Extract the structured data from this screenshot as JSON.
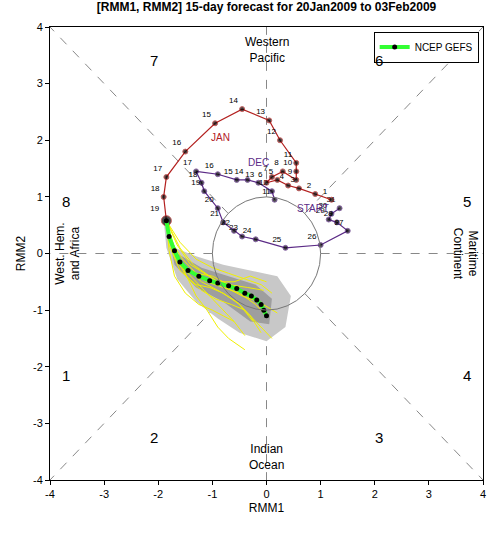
{
  "chart_data": {
    "type": "phase_diagram",
    "title": "[RMM1, RMM2] 15-day forecast for 20Jan2009 to 03Feb2009",
    "x_label": "RMM1",
    "y_label": "RMM2",
    "xlim": [
      -4,
      4
    ],
    "ylim": [
      -4,
      4
    ],
    "xticks": [
      -4,
      -3,
      -2,
      -1,
      0,
      1,
      2,
      3,
      4
    ],
    "yticks": [
      -4,
      -3,
      -2,
      -1,
      0,
      1,
      2,
      3,
      4
    ],
    "circle_radius": 1,
    "legend": "top right",
    "spread": [
      {
        "color": "#c8c8c8",
        "x": [
          -1.9,
          -1.7,
          -1.3,
          -0.8,
          -0.3,
          0.2,
          0.45,
          0.35,
          0.0,
          -0.5,
          -0.9,
          -1.3,
          -1.65,
          -1.85
        ],
        "y": [
          0.6,
          0.1,
          -0.05,
          -0.2,
          -0.3,
          -0.4,
          -0.75,
          -1.3,
          -1.55,
          -1.4,
          -1.15,
          -0.85,
          -0.45,
          0.1
        ]
      },
      {
        "color": "#9e9e9e",
        "x": [
          -1.85,
          -1.65,
          -1.2,
          -0.7,
          -0.2,
          0.1,
          0.05,
          -0.3,
          -0.8,
          -1.3,
          -1.7
        ],
        "y": [
          0.5,
          0.0,
          -0.25,
          -0.4,
          -0.55,
          -0.8,
          -1.25,
          -1.2,
          -0.85,
          -0.6,
          -0.2
        ]
      }
    ],
    "ensemble": {
      "color": "#f0f000",
      "members": [
        {
          "x": [
            -1.85,
            -1.7,
            -1.45,
            -1.1,
            -0.8,
            -0.5,
            -0.2,
            0.0
          ],
          "y": [
            0.58,
            0.0,
            -0.3,
            -0.5,
            -0.6,
            -0.7,
            -0.9,
            -1.1
          ]
        },
        {
          "x": [
            -1.85,
            -1.75,
            -1.6,
            -1.35,
            -1.1,
            -0.85,
            -0.6,
            -0.4
          ],
          "y": [
            0.58,
            0.1,
            -0.2,
            -0.45,
            -0.7,
            -0.95,
            -1.2,
            -1.45
          ]
        },
        {
          "x": [
            -1.85,
            -1.6,
            -1.3,
            -1.0,
            -0.7,
            -0.4,
            -0.1,
            0.1
          ],
          "y": [
            0.58,
            0.2,
            -0.1,
            -0.25,
            -0.35,
            -0.45,
            -0.55,
            -0.7
          ]
        },
        {
          "x": [
            -1.85,
            -1.8,
            -1.7,
            -1.5,
            -1.25,
            -1.0,
            -0.8,
            -0.6
          ],
          "y": [
            0.58,
            0.05,
            -0.4,
            -0.7,
            -0.9,
            -1.0,
            -1.1,
            -1.2
          ]
        },
        {
          "x": [
            -1.85,
            -1.65,
            -1.4,
            -1.15,
            -0.9,
            -0.6,
            -0.3,
            0.0
          ],
          "y": [
            0.58,
            0.15,
            -0.2,
            -0.35,
            -0.5,
            -0.5,
            -0.4,
            -0.5
          ]
        },
        {
          "x": [
            -1.85,
            -1.7,
            -1.5,
            -1.2,
            -0.9,
            -0.55,
            -0.3,
            -0.1
          ],
          "y": [
            0.58,
            0.05,
            -0.25,
            -0.5,
            -0.65,
            -0.85,
            -1.1,
            -1.4
          ]
        },
        {
          "x": [
            -1.85,
            -1.75,
            -1.55,
            -1.3,
            -1.0,
            -0.7,
            -0.35,
            -0.05
          ],
          "y": [
            0.58,
            0.2,
            -0.1,
            -0.35,
            -0.4,
            -0.55,
            -0.6,
            -0.65
          ]
        },
        {
          "x": [
            -1.85,
            -1.7,
            -1.45,
            -1.2,
            -0.95,
            -0.65,
            -0.4,
            0.1
          ],
          "y": [
            0.58,
            -0.05,
            -0.45,
            -0.65,
            -0.8,
            -0.9,
            -1.0,
            -1.5
          ]
        },
        {
          "x": [
            -1.85,
            -1.6,
            -1.35,
            -1.05,
            -0.75,
            -0.45,
            -0.15,
            0.2
          ],
          "y": [
            0.58,
            0.1,
            -0.2,
            -0.4,
            -0.6,
            -0.75,
            -0.85,
            -1.05
          ]
        },
        {
          "x": [
            -1.85,
            -1.8,
            -1.6,
            -1.3,
            -1.05,
            -0.8,
            -0.5,
            -0.25
          ],
          "y": [
            0.58,
            0.15,
            -0.3,
            -0.55,
            -0.6,
            -0.7,
            -0.9,
            -1.2
          ]
        },
        {
          "x": [
            -1.85,
            -1.7,
            -1.5,
            -1.3,
            -1.1,
            -0.9,
            -0.7,
            -0.4
          ],
          "y": [
            0.58,
            0.1,
            -0.35,
            -0.75,
            -1.0,
            -1.3,
            -1.5,
            -1.7
          ]
        }
      ]
    },
    "series": [
      {
        "color": "#5b2a86",
        "days": [
          11,
          12,
          13,
          14,
          15,
          16,
          17,
          18,
          19,
          20,
          21,
          22,
          23,
          24,
          25,
          26,
          27,
          28,
          29,
          30,
          31
        ],
        "x": [
          0.15,
          0.1,
          -0.15,
          -0.35,
          -0.55,
          -0.9,
          -1.3,
          -1.2,
          -1.15,
          -0.9,
          -0.8,
          -0.6,
          -0.45,
          -0.2,
          0.35,
          1.0,
          1.5,
          1.3,
          1.15,
          1.2,
          1.35
        ],
        "y": [
          0.95,
          1.1,
          1.25,
          1.3,
          1.3,
          1.4,
          1.45,
          1.25,
          1.1,
          0.8,
          0.55,
          0.4,
          0.3,
          0.25,
          0.1,
          0.15,
          0.4,
          0.55,
          0.6,
          0.7,
          0.8
        ]
      },
      {
        "color": "#b3201f",
        "days": [
          1,
          2,
          3,
          4,
          5,
          6,
          7,
          8,
          9,
          10,
          11,
          12,
          13,
          14,
          15,
          16,
          17,
          18,
          19
        ],
        "x": [
          1.2,
          0.9,
          0.6,
          0.4,
          0.2,
          0.0,
          0.1,
          0.3,
          0.55,
          0.55,
          0.55,
          0.25,
          0.05,
          -0.45,
          -0.95,
          -1.5,
          -1.85,
          -1.9,
          -1.85
        ],
        "y": [
          0.95,
          1.05,
          1.15,
          1.2,
          1.3,
          1.25,
          1.35,
          1.45,
          1.3,
          1.45,
          1.6,
          2.0,
          2.35,
          2.55,
          2.3,
          1.8,
          1.35,
          1.0,
          0.58
        ]
      },
      {
        "name": "NCEP GEFS",
        "color": "#33ff33",
        "x": [
          -1.85,
          -1.8,
          -1.7,
          -1.6,
          -1.45,
          -1.25,
          -1.05,
          -0.9,
          -0.7,
          -0.55,
          -0.4,
          -0.28,
          -0.18,
          -0.1,
          -0.05,
          0.0
        ],
        "y": [
          0.58,
          0.3,
          0.05,
          -0.15,
          -0.3,
          -0.4,
          -0.48,
          -0.52,
          -0.57,
          -0.62,
          -0.7,
          -0.75,
          -0.82,
          -0.9,
          -1.0,
          -1.1
        ]
      }
    ],
    "annotations": [
      {
        "text": "DEC",
        "x": -0.15,
        "y": 1.6,
        "color": "#5b2a86"
      },
      {
        "text": "JAN",
        "x": -0.85,
        "y": 2.05,
        "color": "#b3201f"
      },
      {
        "text": "START",
        "x": 0.85,
        "y": 0.8,
        "color": "#5b2a86"
      },
      {
        "text": "1",
        "x": -3.7,
        "y": -2.15,
        "color": "#000000"
      },
      {
        "text": "2",
        "x": -2.08,
        "y": -3.25,
        "color": "#000000"
      },
      {
        "text": "3",
        "x": 2.08,
        "y": -3.25,
        "color": "#000000"
      },
      {
        "text": "4",
        "x": 3.7,
        "y": -2.15,
        "color": "#000000"
      },
      {
        "text": "5",
        "x": 3.7,
        "y": 0.92,
        "color": "#000000"
      },
      {
        "text": "6",
        "x": 2.08,
        "y": 3.4,
        "color": "#000000"
      },
      {
        "text": "7",
        "x": -2.08,
        "y": 3.4,
        "color": "#000000"
      },
      {
        "text": "8",
        "x": -3.7,
        "y": 0.92,
        "color": "#000000"
      },
      {
        "text": "Western Pacific",
        "x": 0,
        "y": 3.6,
        "color": "#000000"
      },
      {
        "text": "Indian Ocean",
        "x": 0,
        "y": -3.6,
        "color": "#000000"
      },
      {
        "text": "Maritime Continent",
        "x": 3.68,
        "y": 0,
        "color": "#000000"
      },
      {
        "text": "West. Hem. and Africa",
        "x": -3.68,
        "y": 0,
        "color": "#000000"
      }
    ]
  }
}
